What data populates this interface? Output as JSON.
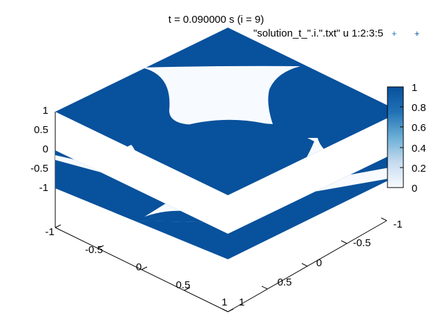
{
  "chart_data": {
    "type": "heatmap",
    "title": "t = 0.090000 s (i = 9)",
    "legend": {
      "label": "\"solution_t_\".i.\".txt\" u 1:2:3:5",
      "marker": "+",
      "position": "top-right"
    },
    "x_axis": {
      "range": [
        -1,
        1
      ],
      "tick_labels": [
        "-1",
        "-0.5",
        "0",
        "0.5",
        "1"
      ]
    },
    "y_axis": {
      "range": [
        -1,
        1
      ],
      "tick_labels": [
        "-1",
        "-0.5",
        "0",
        "0.5",
        "1"
      ]
    },
    "z_axis": {
      "range": [
        -1,
        1
      ],
      "tick_labels": [
        "1",
        "0.5",
        "0",
        "-0.5",
        "-1"
      ]
    },
    "colorbar": {
      "range": [
        0,
        1
      ],
      "tick_labels": [
        "1",
        "0.8",
        "0.6",
        "0.4",
        "0.2",
        "0"
      ],
      "low_color": "#f7fbff",
      "high_color": "#08519c"
    },
    "grid": false,
    "view": "3d surface, viewed from above at an angle"
  }
}
